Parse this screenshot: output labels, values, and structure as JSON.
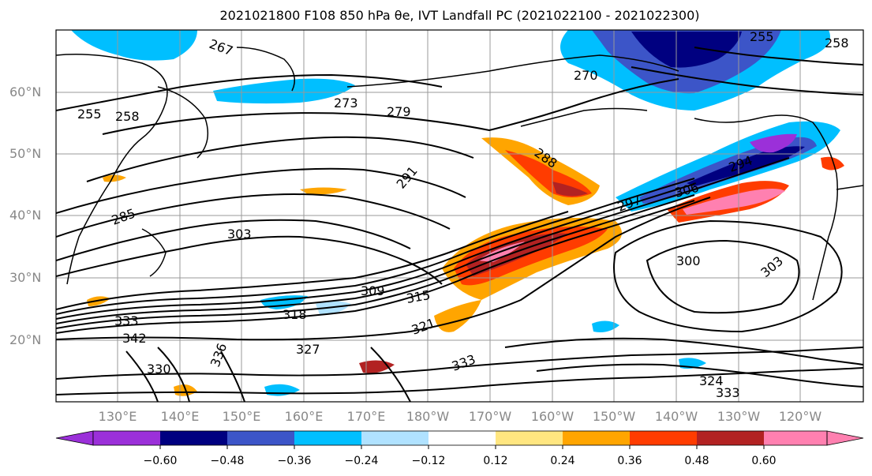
{
  "title": "2021021800 F108 850 hPa θe, IVT Landfall PC (2021022100 - 2021022300)",
  "lat_labels": [
    "60°N",
    "50°N",
    "40°N",
    "30°N",
    "20°N"
  ],
  "lon_labels": [
    "130°E",
    "140°E",
    "150°E",
    "160°E",
    "170°E",
    "180°W",
    "170°W",
    "160°W",
    "150°W",
    "140°W",
    "130°W",
    "120°W"
  ],
  "colorbar": {
    "ticks": [
      "−0.60",
      "−0.48",
      "−0.36",
      "−0.24",
      "−0.12",
      "0.12",
      "0.24",
      "0.36",
      "0.48",
      "0.60"
    ],
    "colors": [
      "#9b30d9",
      "#000080",
      "#3c55c8",
      "#00bfff",
      "#b0e2ff",
      "#ffffff",
      "#ffe680",
      "#ffa500",
      "#ff3c00",
      "#b22222",
      "#ff80b0"
    ]
  },
  "contour_labels": [
    "267",
    "255",
    "258",
    "273",
    "279",
    "291",
    "288",
    "297",
    "300",
    "303",
    "309",
    "315",
    "321",
    "318",
    "333",
    "342",
    "336",
    "327",
    "330",
    "324",
    "270",
    "285",
    "294",
    "306"
  ]
}
